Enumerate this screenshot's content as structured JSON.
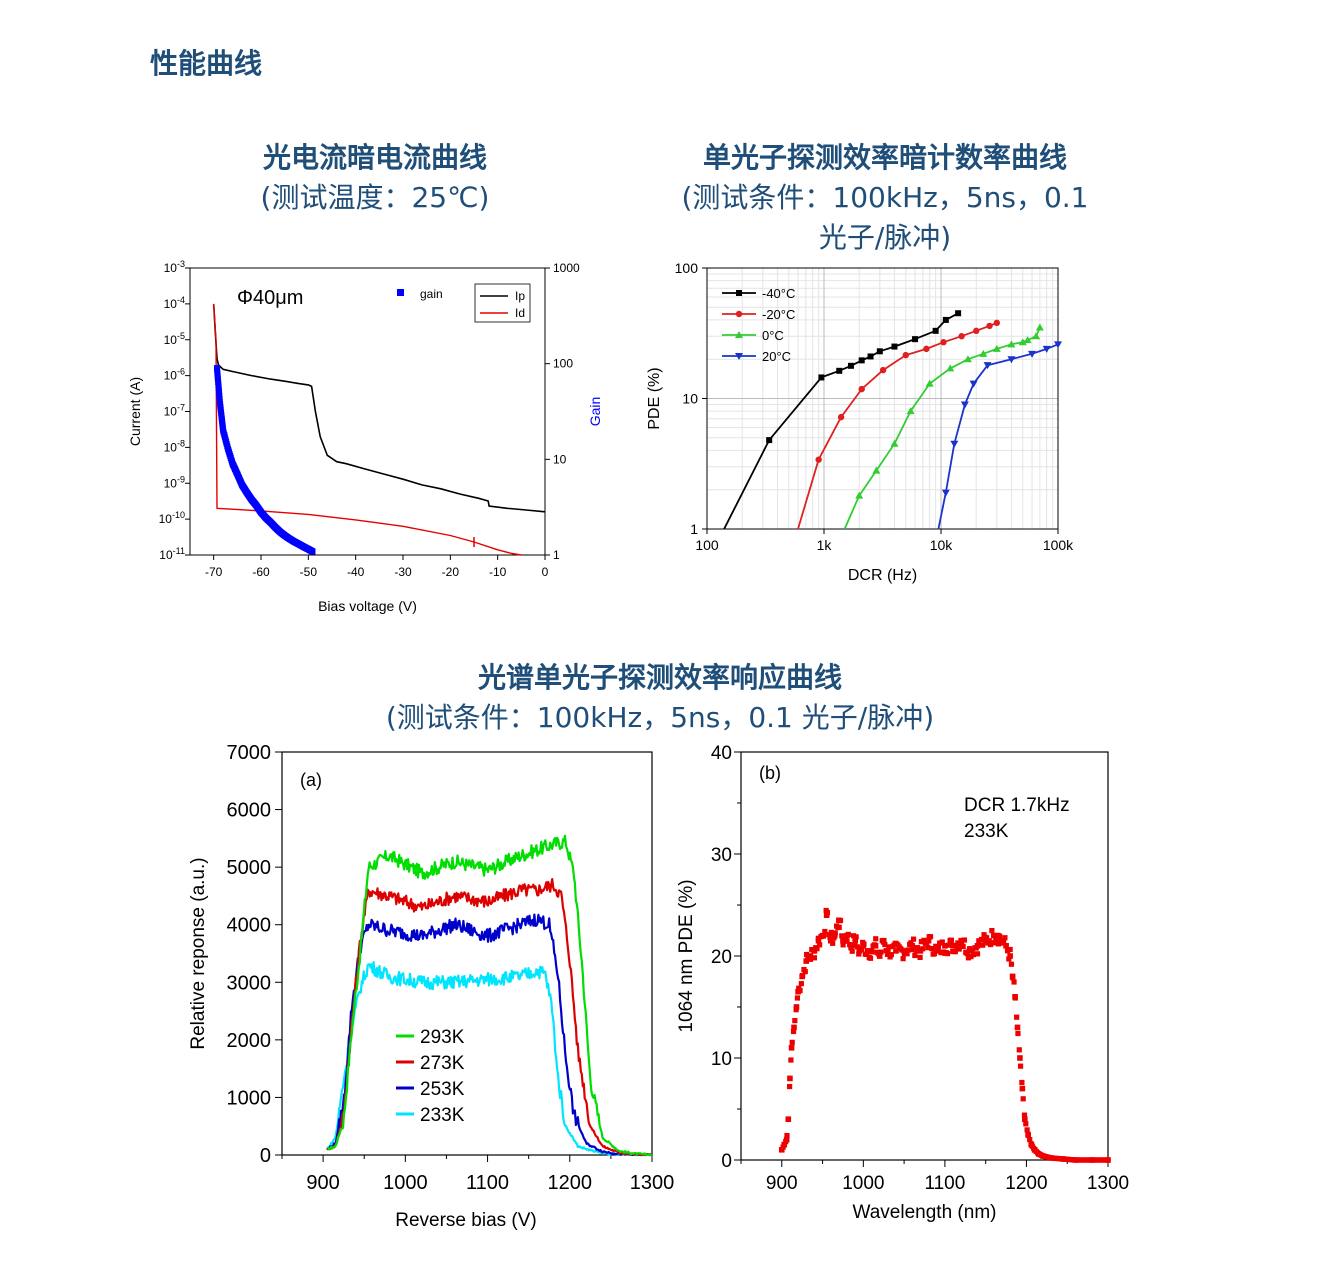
{
  "page_title": "性能曲线",
  "sections": {
    "iv": {
      "title": "光电流暗电流曲线",
      "subtitle": "(测试温度：25℃)"
    },
    "pde": {
      "title": "单光子探测效率暗计数率曲线",
      "subtitle_1": "(测试条件：100kHz，5ns，0.1",
      "subtitle_2": "光子/脉冲)"
    },
    "spectral": {
      "title": "光谱单光子探测效率响应曲线",
      "subtitle": "(测试条件：100kHz，5ns，0.1 光子/脉冲)"
    }
  },
  "colors": {
    "title": "#1f4e79",
    "gain": "#0000ff",
    "ip": "#000000",
    "id": "#e60000",
    "c_m40": "#000000",
    "c_m20": "#e02020",
    "c_0": "#33cc33",
    "c_20": "#1a33cc",
    "k293": "#00dd00",
    "k273": "#dd0000",
    "k253": "#0000cc",
    "k233": "#00e5ff",
    "pde1064": "#ee0000"
  },
  "chart_data": [
    {
      "type": "line",
      "annotation": "Φ40μm",
      "xlabel": "Bias voltage (V)",
      "ylabel": "Current (A)",
      "y2label": "Gain",
      "xlim": [
        -75,
        0
      ],
      "ylim": [
        1e-11,
        0.001
      ],
      "y2lim": [
        1,
        1000
      ],
      "xticks": [
        "-70",
        "-60",
        "-50",
        "-40",
        "-30",
        "-20",
        "-10",
        "0"
      ],
      "yticks": [
        "10-3",
        "10-4",
        "10-5",
        "10-6",
        "10-7",
        "10-8",
        "10-9",
        "10-10",
        "10-11"
      ],
      "y2ticks": [
        "1000",
        "100",
        "10",
        "1"
      ],
      "legend": [
        "gain",
        "Ip",
        "Id"
      ],
      "series": [
        {
          "name": "Ip",
          "axis": "left",
          "x": [
            -70,
            -69.7,
            -69.3,
            -69,
            -68,
            -66,
            -62,
            -58,
            -55,
            -52,
            -50,
            -49.3,
            -48.5,
            -47.5,
            -46,
            -44,
            -42,
            -38,
            -34,
            -30,
            -26,
            -22,
            -18,
            -14,
            -12,
            -11.8,
            -8,
            -4,
            0
          ],
          "y": [
            0.0001,
            2e-05,
            3e-06,
            2e-06,
            1.5e-06,
            1.3e-06,
            1e-06,
            8e-07,
            7e-07,
            6e-07,
            5.5e-07,
            5e-07,
            1e-07,
            2e-08,
            6e-09,
            4e-09,
            3.5e-09,
            2.5e-09,
            1.8e-09,
            1.3e-09,
            9e-10,
            7e-10,
            5e-10,
            3.8e-10,
            3.2e-10,
            2.3e-10,
            2e-10,
            1.8e-10,
            1.6e-10
          ]
        },
        {
          "name": "Id",
          "axis": "left",
          "x": [
            -70,
            -69.5,
            -69.3,
            -60,
            -50,
            -40,
            -30,
            -20,
            -15,
            -10,
            -7,
            -5
          ],
          "y": [
            0.0001,
            1e-05,
            2e-10,
            1.7e-10,
            1.35e-10,
            9.5e-11,
            6.3e-11,
            3.5e-11,
            2.3e-11,
            1.4e-11,
            1.1e-11,
            1e-11
          ]
        },
        {
          "name": "gain",
          "axis": "right",
          "x": [
            -69.3,
            -69,
            -68.7,
            -68.3,
            -68,
            -67,
            -66,
            -65,
            -64,
            -63,
            -62,
            -61,
            -60,
            -59,
            -58,
            -57,
            -56,
            -55,
            -54,
            -53,
            -52,
            -51,
            -50,
            -49
          ],
          "y": [
            90,
            60,
            40,
            27,
            20,
            13,
            9,
            7,
            5.4,
            4.5,
            3.8,
            3.3,
            2.8,
            2.45,
            2.2,
            1.95,
            1.75,
            1.6,
            1.48,
            1.38,
            1.3,
            1.22,
            1.15,
            1.08
          ]
        }
      ]
    },
    {
      "type": "line",
      "xlabel": "DCR (Hz)",
      "ylabel": "PDE (%)",
      "xscale": "log",
      "yscale": "log",
      "xlim": [
        100,
        100000
      ],
      "ylim": [
        1,
        100
      ],
      "xticks": [
        "100",
        "1k",
        "10k",
        "100k"
      ],
      "yticks": [
        "100",
        "10",
        "1"
      ],
      "legend_position": "top-left",
      "series": [
        {
          "name": "-40°C",
          "x": [
            140,
            340,
            950,
            1350,
            1700,
            2100,
            2500,
            3000,
            4000,
            6000,
            9000,
            11000,
            14000
          ],
          "y": [
            1,
            4.8,
            14.5,
            16.3,
            17.8,
            19.6,
            21,
            23,
            25,
            28.5,
            33,
            40,
            45
          ]
        },
        {
          "name": "-20°C",
          "x": [
            600,
            900,
            1400,
            2100,
            3200,
            5000,
            7500,
            10500,
            15000,
            20000,
            26000,
            30000
          ],
          "y": [
            1,
            3.4,
            7.2,
            11.8,
            16.5,
            21.5,
            24,
            27,
            30,
            33,
            36,
            38
          ]
        },
        {
          "name": "0°C",
          "x": [
            1500,
            2000,
            2800,
            4000,
            5500,
            8000,
            12000,
            17000,
            23000,
            30000,
            40000,
            50000,
            55000,
            65000,
            70000
          ],
          "y": [
            1,
            1.8,
            2.8,
            4.5,
            8,
            13,
            17,
            20,
            22,
            24,
            26,
            27,
            28,
            30,
            35
          ]
        },
        {
          "name": "20°C",
          "x": [
            9500,
            11000,
            13000,
            16000,
            19000,
            25000,
            40000,
            60000,
            80000,
            100000
          ],
          "y": [
            1,
            1.9,
            4.5,
            9,
            13,
            18,
            20,
            22,
            24,
            26
          ]
        }
      ]
    },
    {
      "type": "line",
      "panel_label": "(a)",
      "xlabel": "Reverse bias (V)",
      "ylabel": "Relative reponse (a.u.)",
      "xlim": [
        850,
        1300
      ],
      "ylim": [
        0,
        7000
      ],
      "xticks": [
        "900",
        "1000",
        "1100",
        "1200",
        "1300"
      ],
      "yticks": [
        "0",
        "1000",
        "2000",
        "3000",
        "4000",
        "5000",
        "6000",
        "7000"
      ],
      "legend_position": "bottom-left",
      "series": [
        {
          "name": "293K",
          "x": [
            905,
            915,
            925,
            935,
            945,
            955,
            980,
            1020,
            1060,
            1100,
            1140,
            1160,
            1180,
            1195,
            1205,
            1215,
            1225,
            1240,
            1260,
            1280,
            1300
          ],
          "y": [
            100,
            150,
            600,
            2200,
            3500,
            5000,
            5200,
            4900,
            5100,
            4950,
            5200,
            5300,
            5400,
            5450,
            4900,
            3300,
            1300,
            300,
            70,
            20,
            0
          ]
        },
        {
          "name": "273K",
          "x": [
            905,
            915,
            925,
            935,
            945,
            955,
            980,
            1020,
            1060,
            1100,
            1140,
            1160,
            1180,
            1190,
            1200,
            1210,
            1225,
            1240,
            1260,
            1280,
            1300
          ],
          "y": [
            100,
            150,
            700,
            2300,
            3700,
            4600,
            4500,
            4300,
            4500,
            4400,
            4600,
            4600,
            4700,
            4500,
            3400,
            1800,
            500,
            150,
            40,
            10,
            0
          ]
        },
        {
          "name": "253K",
          "x": [
            905,
            915,
            925,
            935,
            945,
            955,
            980,
            1020,
            1060,
            1100,
            1140,
            1160,
            1175,
            1185,
            1195,
            1205,
            1220,
            1240,
            1260,
            1280,
            1300
          ],
          "y": [
            100,
            200,
            900,
            2600,
            3600,
            4000,
            3900,
            3800,
            4000,
            3800,
            4000,
            4100,
            4000,
            3200,
            1700,
            700,
            200,
            60,
            20,
            5,
            0
          ]
        },
        {
          "name": "233K",
          "x": [
            905,
            915,
            925,
            935,
            945,
            955,
            980,
            1020,
            1060,
            1100,
            1140,
            1160,
            1170,
            1178,
            1186,
            1195,
            1210,
            1230,
            1250,
            1270,
            1290
          ],
          "y": [
            100,
            300,
            1300,
            2200,
            2900,
            3300,
            3100,
            3000,
            3000,
            3050,
            3100,
            3200,
            3150,
            2600,
            1300,
            500,
            150,
            60,
            20,
            5,
            0
          ]
        }
      ]
    },
    {
      "type": "scatter",
      "panel_label": "(b)",
      "annotation_1": "DCR 1.7kHz",
      "annotation_2": "233K",
      "xlabel": "Wavelength (nm)",
      "ylabel": "1064 nm PDE (%)",
      "xlim": [
        850,
        1300
      ],
      "ylim": [
        0,
        40
      ],
      "xticks": [
        "900",
        "1000",
        "1100",
        "1200",
        "1300"
      ],
      "yticks": [
        "0",
        "10",
        "20",
        "30",
        "40"
      ],
      "series": [
        {
          "name": "",
          "x": [
            900,
            903,
            906,
            908,
            910,
            912,
            915,
            918,
            920,
            925,
            930,
            935,
            940,
            945,
            950,
            955,
            960,
            965,
            970,
            975,
            980,
            985,
            990,
            995,
            1000,
            1005,
            1010,
            1015,
            1020,
            1025,
            1030,
            1040,
            1050,
            1060,
            1070,
            1080,
            1090,
            1100,
            1110,
            1120,
            1130,
            1140,
            1150,
            1160,
            1165,
            1170,
            1175,
            1180,
            1183,
            1186,
            1189,
            1192,
            1195,
            1198,
            1202,
            1206,
            1210,
            1215,
            1220,
            1230,
            1245,
            1260,
            1280,
            1300
          ],
          "y": [
            1,
            1.5,
            2,
            4,
            8,
            11,
            13,
            15,
            16.5,
            18,
            19.5,
            20,
            20.5,
            21.5,
            22,
            24,
            21.5,
            22,
            23.5,
            21.5,
            22,
            21,
            21.5,
            20.5,
            21,
            20.5,
            20.5,
            21,
            20,
            21.5,
            20.5,
            20.5,
            20.5,
            21,
            20.5,
            21.5,
            20.5,
            21,
            21,
            21.5,
            20.5,
            21,
            21.5,
            22,
            22,
            21.5,
            21,
            20,
            18,
            16,
            13,
            10,
            7,
            4,
            2.5,
            1.5,
            1,
            0.6,
            0.4,
            0.2,
            0.1,
            0,
            0,
            0
          ]
        }
      ]
    }
  ]
}
